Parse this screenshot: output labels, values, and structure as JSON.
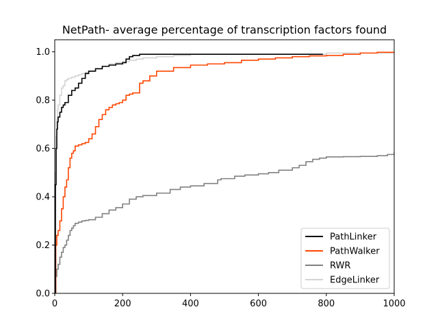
{
  "chart_data": {
    "type": "line",
    "title": "NetPath- average percentage of transcription factors found",
    "xlabel": "",
    "ylabel": "",
    "xlim": [
      0,
      1000
    ],
    "ylim": [
      0,
      1.05
    ],
    "xticks": [
      0,
      200,
      400,
      600,
      800,
      1000
    ],
    "yticks": [
      0.0,
      0.2,
      0.4,
      0.6,
      0.8,
      1.0
    ],
    "xtick_labels": [
      "0",
      "200",
      "400",
      "600",
      "800",
      "1000"
    ],
    "ytick_labels": [
      "0.0",
      "0.2",
      "0.4",
      "0.6",
      "0.8",
      "1.0"
    ],
    "grid": false,
    "legend_position": "lower-right",
    "series": [
      {
        "name": "PathLinker",
        "color": "#000000",
        "x": [
          0,
          2,
          4,
          6,
          8,
          10,
          15,
          20,
          25,
          30,
          40,
          50,
          60,
          70,
          80,
          90,
          100,
          120,
          140,
          160,
          180,
          200,
          210,
          220,
          230,
          250,
          280,
          300,
          400,
          500,
          600,
          700,
          790
        ],
        "y": [
          0.0,
          0.45,
          0.6,
          0.68,
          0.71,
          0.73,
          0.75,
          0.77,
          0.78,
          0.79,
          0.82,
          0.84,
          0.85,
          0.87,
          0.89,
          0.91,
          0.92,
          0.93,
          0.94,
          0.945,
          0.95,
          0.955,
          0.97,
          0.98,
          0.985,
          0.99,
          0.99,
          0.99,
          0.99,
          0.99,
          0.99,
          0.99,
          0.99
        ]
      },
      {
        "name": "PathWalker",
        "color": "#ff4500",
        "x": [
          0,
          3,
          6,
          10,
          15,
          20,
          25,
          30,
          35,
          40,
          45,
          50,
          55,
          60,
          70,
          80,
          90,
          100,
          110,
          120,
          130,
          140,
          150,
          160,
          170,
          180,
          190,
          200,
          210,
          220,
          230,
          240,
          250,
          260,
          280,
          300,
          350,
          400,
          450,
          500,
          550,
          600,
          650,
          700,
          750,
          800,
          850,
          900,
          950,
          1000
        ],
        "y": [
          0.0,
          0.2,
          0.24,
          0.26,
          0.3,
          0.35,
          0.4,
          0.44,
          0.47,
          0.52,
          0.56,
          0.58,
          0.59,
          0.61,
          0.615,
          0.62,
          0.625,
          0.64,
          0.66,
          0.69,
          0.72,
          0.74,
          0.76,
          0.77,
          0.78,
          0.785,
          0.79,
          0.8,
          0.82,
          0.825,
          0.83,
          0.83,
          0.87,
          0.88,
          0.9,
          0.92,
          0.935,
          0.945,
          0.95,
          0.955,
          0.965,
          0.97,
          0.975,
          0.98,
          0.983,
          0.985,
          0.99,
          0.995,
          0.998,
          1.0
        ]
      },
      {
        "name": "RWR",
        "color": "#808080",
        "x": [
          0,
          3,
          6,
          10,
          15,
          20,
          25,
          30,
          35,
          40,
          45,
          50,
          55,
          60,
          70,
          80,
          90,
          100,
          120,
          140,
          160,
          180,
          200,
          220,
          240,
          260,
          300,
          340,
          370,
          400,
          440,
          480,
          490,
          530,
          560,
          600,
          630,
          660,
          700,
          720,
          740,
          760,
          780,
          800,
          850,
          900,
          950,
          980,
          1000
        ],
        "y": [
          0.0,
          0.07,
          0.1,
          0.12,
          0.15,
          0.17,
          0.19,
          0.2,
          0.22,
          0.24,
          0.26,
          0.27,
          0.28,
          0.29,
          0.295,
          0.3,
          0.302,
          0.305,
          0.315,
          0.33,
          0.345,
          0.355,
          0.37,
          0.39,
          0.4,
          0.405,
          0.415,
          0.43,
          0.44,
          0.445,
          0.455,
          0.47,
          0.475,
          0.485,
          0.49,
          0.495,
          0.5,
          0.51,
          0.52,
          0.53,
          0.545,
          0.555,
          0.56,
          0.565,
          0.566,
          0.567,
          0.57,
          0.575,
          0.585
        ]
      },
      {
        "name": "EdgeLinker",
        "color": "#d3d3d3",
        "x": [
          0,
          2,
          4,
          6,
          8,
          10,
          15,
          20,
          25,
          30,
          35,
          40,
          50,
          60,
          70,
          80,
          90,
          100,
          120,
          140,
          160,
          180,
          200,
          220,
          240,
          260,
          300,
          350,
          400,
          500,
          600,
          700,
          800,
          900,
          1000
        ],
        "y": [
          0.0,
          0.5,
          0.65,
          0.72,
          0.76,
          0.78,
          0.82,
          0.85,
          0.86,
          0.88,
          0.885,
          0.89,
          0.895,
          0.9,
          0.905,
          0.91,
          0.915,
          0.92,
          0.93,
          0.94,
          0.95,
          0.955,
          0.96,
          0.965,
          0.97,
          0.975,
          0.98,
          0.985,
          0.99,
          0.99,
          0.99,
          0.99,
          0.995,
          0.995,
          0.995
        ]
      }
    ]
  }
}
